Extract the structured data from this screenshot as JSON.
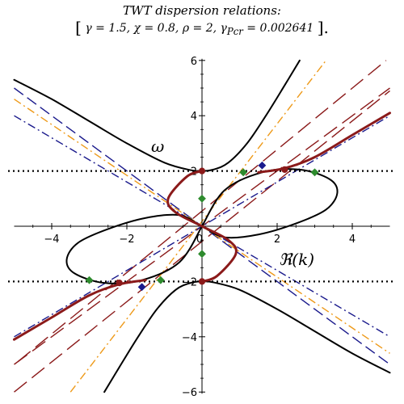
{
  "title": {
    "line1": "TWT dispersion relations:",
    "line2_parts": {
      "gamma": "γ = 1.5,",
      "chi": "χ = 0.8,",
      "rho": "ρ = 2,",
      "gamma_pcr_symbol": "γ",
      "gamma_pcr_sub": "Pcr",
      "gamma_pcr_value": " = 0.002641",
      "open_bracket": "[",
      "close_bracket": "]."
    }
  },
  "chart_data": {
    "type": "line",
    "xlabel": "ℜ(k)",
    "ylabel": "ω",
    "xlim": [
      -5,
      5
    ],
    "ylim": [
      -6,
      6
    ],
    "x_ticks": [
      -4,
      -2,
      0,
      2,
      4
    ],
    "x_tick_labels": [
      "−4",
      "−2",
      "0",
      "2",
      "4"
    ],
    "y_ticks": [
      -6,
      -4,
      -2,
      2,
      4,
      6
    ],
    "y_tick_labels": [
      "−6",
      "−4",
      "−2",
      "2",
      "4",
      "6"
    ],
    "grid": false,
    "colors": {
      "black": "#000000",
      "darkred": "#8b1a1a",
      "navy": "#1a1a8c",
      "orange": "#ee9a1a",
      "green": "#2e8b2e"
    },
    "hlines": [
      {
        "y": 2,
        "style": "dotted",
        "color": "#000000"
      },
      {
        "y": -2,
        "style": "dotted",
        "color": "#000000"
      }
    ],
    "straight_lines": [
      {
        "style": "longdash",
        "color": "#8b1a1a",
        "x1": -5,
        "y1": -5,
        "x2": 5,
        "y2": 5
      },
      {
        "style": "longdash",
        "color": "#8b1a1a",
        "x1": -5,
        "y1": -6.0,
        "x2": 5,
        "y2": 4.9
      },
      {
        "style": "longdash",
        "color": "#8b1a1a",
        "x1": -4.9,
        "y1": -4.9,
        "x2": 4.9,
        "y2": 6.0
      },
      {
        "style": "dash",
        "color": "#1a1a8c",
        "x1": -5,
        "y1": 5.0,
        "x2": 5,
        "y2": -5.0
      },
      {
        "style": "dashdot",
        "color": "#1a1a8c",
        "x1": -5,
        "y1": 4.0,
        "x2": 5,
        "y2": -4.0
      },
      {
        "style": "dashdot",
        "color": "#1a1a8c",
        "x1": -5,
        "y1": -4.0,
        "x2": 5,
        "y2": 4.0
      },
      {
        "style": "dashdot",
        "color": "#ee9a1a",
        "x1": -3.5,
        "y1": -6.0,
        "x2": 3.3,
        "y2": 6.0
      },
      {
        "style": "dashdot",
        "color": "#ee9a1a",
        "x1": -5,
        "y1": 4.6,
        "x2": 5,
        "y2": -4.6
      }
    ],
    "curves": [
      {
        "name": "upper-branch-left",
        "color": "#000000",
        "width": 2,
        "x": [
          -5,
          -4,
          -3,
          -2,
          -1,
          -0.3,
          0,
          0.3,
          0.7,
          1.2,
          1.7,
          2.2,
          2.6
        ],
        "y": [
          5.3,
          4.6,
          3.8,
          3.0,
          2.3,
          2.03,
          2.0,
          2.05,
          2.3,
          3.0,
          4.0,
          5.1,
          6.0
        ]
      },
      {
        "name": "lower-branch",
        "color": "#000000",
        "width": 2,
        "x": [
          -2.6,
          -2.2,
          -1.7,
          -1.2,
          -0.7,
          -0.3,
          0,
          0.3,
          1,
          2,
          3,
          4,
          5
        ],
        "y": [
          -6.0,
          -5.1,
          -4.0,
          -3.0,
          -2.3,
          -2.05,
          -2.0,
          -2.03,
          -2.3,
          -3.0,
          -3.8,
          -4.6,
          -5.3
        ]
      },
      {
        "name": "loop",
        "color": "#000000",
        "width": 2,
        "x": [
          0,
          0.6,
          1.6,
          2.6,
          3.4,
          3.6,
          3.3,
          2.5,
          1.5,
          0.6,
          0,
          -0.6,
          -1.5,
          -2.5,
          -3.3,
          -3.6,
          -3.4,
          -2.6,
          -1.6,
          -0.6,
          0
        ],
        "y": [
          0,
          1.3,
          1.95,
          2.05,
          1.7,
          1.2,
          0.6,
          0.1,
          -0.3,
          -0.4,
          0,
          0.4,
          0.3,
          -0.1,
          -0.6,
          -1.2,
          -1.7,
          -2.05,
          -1.95,
          -1.3,
          0
        ]
      },
      {
        "name": "red-upper-right",
        "color": "#8b1a1a",
        "width": 3,
        "x": [
          1.5,
          2.2,
          3.0,
          4.0,
          5.0
        ],
        "y": [
          1.95,
          2.1,
          2.5,
          3.3,
          4.1
        ]
      },
      {
        "name": "red-lower-left",
        "color": "#8b1a1a",
        "width": 3,
        "x": [
          -5,
          -4,
          -3,
          -2.2,
          -1.5
        ],
        "y": [
          -4.1,
          -3.3,
          -2.5,
          -2.1,
          -1.95
        ]
      },
      {
        "name": "red-middle",
        "color": "#8b1a1a",
        "width": 3,
        "x": [
          0,
          -0.4,
          -0.9,
          -0.7,
          0,
          0.7,
          0.9,
          0.4,
          0
        ],
        "y": [
          2.0,
          1.8,
          1.0,
          0.5,
          0,
          -0.5,
          -1.0,
          -1.8,
          -2.0
        ]
      }
    ],
    "markers": [
      {
        "x": 0,
        "y": 2.0,
        "color": "#8b1a1a",
        "shape": "circle"
      },
      {
        "x": 0,
        "y": -2.0,
        "color": "#8b1a1a",
        "shape": "circle"
      },
      {
        "x": 2.2,
        "y": 2.05,
        "color": "#8b1a1a",
        "shape": "circle"
      },
      {
        "x": -2.2,
        "y": -2.05,
        "color": "#8b1a1a",
        "shape": "circle"
      },
      {
        "x": 1.1,
        "y": 1.95,
        "color": "#2e8b2e",
        "shape": "diamond"
      },
      {
        "x": 3.0,
        "y": 1.95,
        "color": "#2e8b2e",
        "shape": "diamond"
      },
      {
        "x": -1.1,
        "y": -1.95,
        "color": "#2e8b2e",
        "shape": "diamond"
      },
      {
        "x": -3.0,
        "y": -1.95,
        "color": "#2e8b2e",
        "shape": "diamond"
      },
      {
        "x": 0,
        "y": 1.0,
        "color": "#2e8b2e",
        "shape": "diamond"
      },
      {
        "x": 0,
        "y": -1.0,
        "color": "#2e8b2e",
        "shape": "diamond"
      },
      {
        "x": 1.6,
        "y": 2.2,
        "color": "#1a1a8c",
        "shape": "diamond"
      },
      {
        "x": -1.6,
        "y": -2.2,
        "color": "#1a1a8c",
        "shape": "diamond"
      }
    ]
  }
}
